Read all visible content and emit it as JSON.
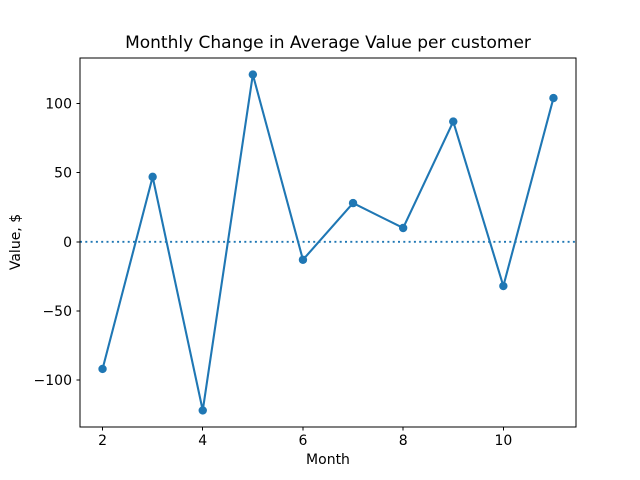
{
  "chart_data": {
    "type": "line",
    "title": "Monthly Change in Average Value per customer",
    "xlabel": "Month",
    "ylabel": "Value, $",
    "x": [
      2,
      3,
      4,
      5,
      6,
      7,
      8,
      9,
      10,
      11
    ],
    "values": [
      -92,
      47,
      -122,
      121,
      -13,
      28,
      10,
      87,
      -32,
      104
    ],
    "xlim": [
      1.55,
      11.45
    ],
    "ylim": [
      -134,
      133
    ],
    "xticks": [
      2,
      4,
      6,
      8,
      10
    ],
    "xtick_labels": [
      "2",
      "4",
      "6",
      "8",
      "10"
    ],
    "yticks": [
      -100,
      -50,
      0,
      50,
      100
    ],
    "ytick_labels": [
      "−100",
      "−50",
      "0",
      "50",
      "100"
    ],
    "line_color": "#1f77b4",
    "marker": "circle",
    "zero_line": {
      "y": 0,
      "style": "dotted",
      "color": "#1f77b4"
    },
    "grid": false,
    "legend_position": "none",
    "background_color": "#ffffff",
    "spine_color": "#000000"
  }
}
